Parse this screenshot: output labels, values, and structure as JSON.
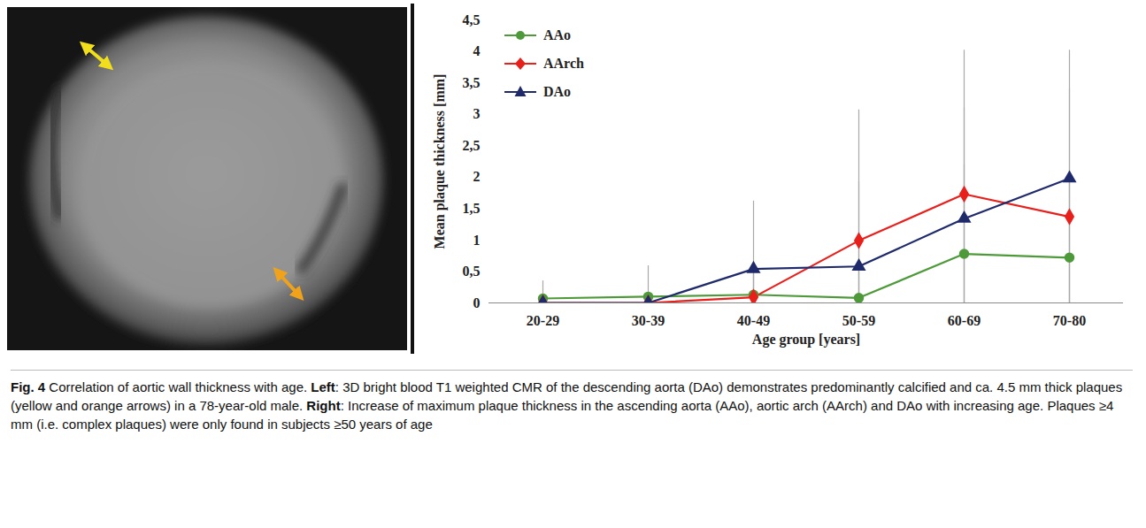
{
  "chart_data": {
    "type": "line",
    "x_label": "Age group [years]",
    "y_label": "Mean plaque thickness [mm]",
    "categories": [
      "20-29",
      "30-39",
      "40-49",
      "50-59",
      "60-69",
      "70-80"
    ],
    "series": [
      {
        "name": "AAo",
        "color": "#4e9a3a",
        "marker": "circle",
        "values": [
          0.07,
          0.1,
          0.13,
          0.08,
          0.78,
          0.72
        ],
        "error": [
          0.28,
          0.49,
          0.45,
          0.61,
          1.42,
          1.38
        ]
      },
      {
        "name": "AArch",
        "color": "#e8201c",
        "marker": "diamond",
        "values": [
          0,
          0,
          0.09,
          0.99,
          1.73,
          1.37
        ],
        "error": [
          0,
          0,
          0.55,
          2.08,
          2.29,
          2.03
        ]
      },
      {
        "name": "DAo",
        "color": "#1f2a6b",
        "marker": "triangle",
        "values": [
          0,
          0,
          0.54,
          0.58,
          1.34,
          1.98
        ],
        "error": [
          0,
          0,
          1.08,
          1.35,
          1.76,
          2.04
        ]
      }
    ],
    "ylim": [
      0,
      4.5
    ],
    "yticks": [
      0,
      {
        "value": 0.5,
        "label": "0,5"
      },
      1,
      {
        "value": 1.5,
        "label": "1,5"
      },
      2,
      {
        "value": 2.5,
        "label": "2,5"
      },
      3,
      {
        "value": 3.5,
        "label": "3,5"
      },
      4,
      {
        "value": 4.5,
        "label": "4,5"
      }
    ],
    "legend": "top-left",
    "grid": false
  },
  "caption": {
    "label": "Fig. 4",
    "title": "Correlation of aortic wall thickness with age.",
    "parts": [
      {
        "head": "Left",
        "text": ": 3D bright blood T1 weighted CMR of the descending aorta (DAo) demonstrates predominantly calcified and ca. 4.5 mm thick plaques (yellow and orange arrows) in a 78-year-old male."
      },
      {
        "head": "Right",
        "text": ": Increase of maximum plaque thickness in the ascending aorta (AAo), aortic arch (AArch) and DAo with increasing age. Plaques ≥4 mm (i.e. complex plaques) were only found in subjects ≥50 years of age"
      }
    ]
  }
}
